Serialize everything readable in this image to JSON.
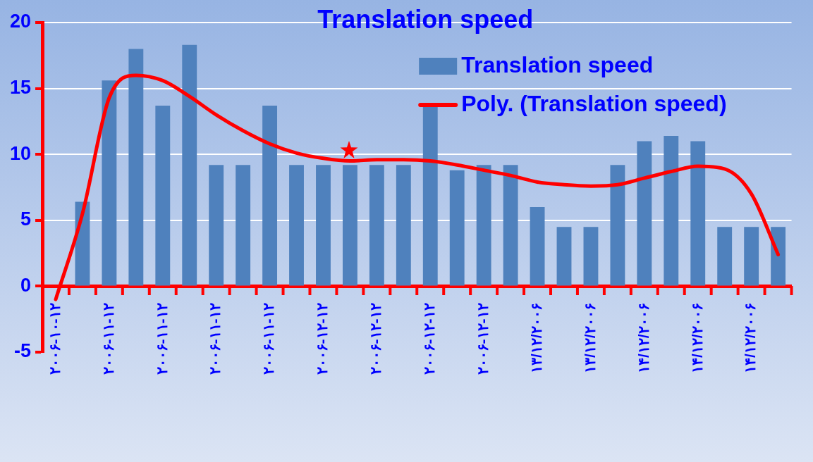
{
  "chart_data": {
    "type": "bar",
    "title": "Translation speed",
    "categories": [
      "۲۰۰۶-۱۰-۱۲",
      null,
      "۲۰۰۶-۱۱-۱۲",
      null,
      "۲۰۰۶-۱۱-۱۲",
      null,
      "۲۰۰۶-۱۱-۱۲",
      null,
      "۲۰۰۶-۱۱-۱۲",
      null,
      "۲۰۰۶-۱۲-۱۲",
      null,
      "۲۰۰۶-۱۲-۱۲",
      null,
      "۲۰۰۶-۱۲-۱۲",
      null,
      "۲۰۰۶-۱۲-۱۲",
      null,
      "۱۳/۱۲/۲۰۰۶",
      null,
      "۱۳/۱۲/۲۰۰۶",
      null,
      "۱۴/۱۲/۲۰۰۶",
      null,
      "۱۴/۱۲/۲۰۰۶",
      null,
      "۱۴/۱۲/۲۰۰۶",
      null
    ],
    "series": [
      {
        "name": "Translation speed",
        "color": "#4f81bd",
        "values": [
          null,
          6.4,
          15.6,
          18.0,
          13.7,
          18.3,
          9.2,
          9.2,
          13.7,
          9.2,
          9.2,
          9.2,
          9.2,
          9.2,
          13.7,
          8.8,
          9.2,
          9.2,
          6.0,
          4.5,
          4.5,
          9.2,
          11.0,
          11.4,
          11.0,
          4.5,
          4.5,
          4.5
        ]
      },
      {
        "name": "Poly. (Translation speed)",
        "type": "line",
        "color": "#ff0000",
        "values": [
          -1.0,
          5.5,
          14.3,
          16.0,
          15.6,
          14.4,
          13.0,
          11.8,
          10.8,
          10.1,
          9.7,
          9.5,
          9.6,
          9.6,
          9.5,
          9.2,
          8.8,
          8.4,
          7.9,
          7.7,
          7.6,
          7.7,
          8.2,
          8.7,
          9.1,
          8.9,
          7.0,
          2.4
        ]
      }
    ],
    "ylim": [
      -5,
      20
    ],
    "yticks": [
      -5,
      0,
      5,
      10,
      15,
      20
    ],
    "grid": "y",
    "legend": "top right",
    "marker": "none",
    "line_style": "solid"
  }
}
